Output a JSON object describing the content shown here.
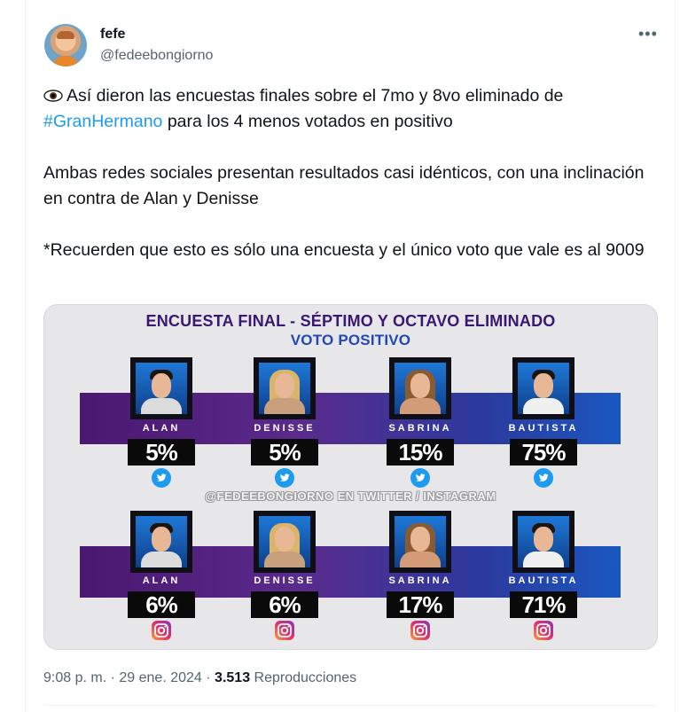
{
  "author": {
    "name": "fefe",
    "handle": "@fedeebongiorno"
  },
  "menu_icon": "more-horizontal-icon",
  "tweet": {
    "line1_emoji": "eye-icon",
    "para1_prefix": "Así dieron las encuestas finales sobre el 7mo y 8vo eliminado de",
    "hashtag": "#GranHermano",
    "para1_suffix": "para los 4 menos votados en positivo",
    "para2": "Ambas redes sociales presentan resultados casi idénticos, con una inclinación en contra de Alan y Denisse",
    "para3": "*Recuerden que esto es sólo una encuesta y el único voto que vale es al 9009"
  },
  "image": {
    "title_line1": "ENCUESTA FINAL - SÉPTIMO Y OCTAVO ELIMINADO",
    "title_line2": "VOTO POSITIVO",
    "watermark": "@FEDEEBONGIORNO EN TWITTER / INSTAGRAM",
    "twitter": {
      "icon": "twitter-icon",
      "results": [
        {
          "name": "ALAN",
          "pct": "5%"
        },
        {
          "name": "DENISSE",
          "pct": "5%"
        },
        {
          "name": "SABRINA",
          "pct": "15%"
        },
        {
          "name": "BAUTISTA",
          "pct": "75%"
        }
      ]
    },
    "instagram": {
      "icon": "instagram-icon",
      "results": [
        {
          "name": "ALAN",
          "pct": "6%"
        },
        {
          "name": "DENISSE",
          "pct": "6%"
        },
        {
          "name": "SABRINA",
          "pct": "17%"
        },
        {
          "name": "BAUTISTA",
          "pct": "71%"
        }
      ]
    }
  },
  "footer": {
    "time": "9:08 p. m.",
    "sep1": "·",
    "date": "29 ene. 2024",
    "sep2": "·",
    "views_count": "3.513",
    "views_label": "Reproducciones"
  },
  "colors": {
    "hashtag": "#1d9bf0",
    "secondary_text": "#536471",
    "title_purple": "#3a1773",
    "title_blue": "#2348b5"
  }
}
